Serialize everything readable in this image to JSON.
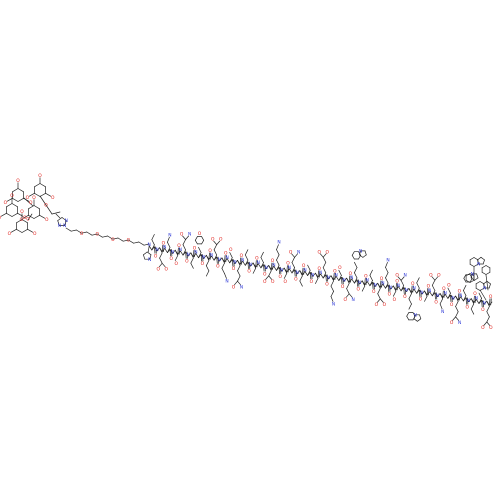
{
  "figure": {
    "kind": "chemical structure",
    "colors": {
      "bond": "#222222",
      "oxygen": "#e0201b",
      "nitrogen": "#2a35d6"
    },
    "atom_labels": {
      "oxygen": "O",
      "nitrogen": "N"
    }
  }
}
